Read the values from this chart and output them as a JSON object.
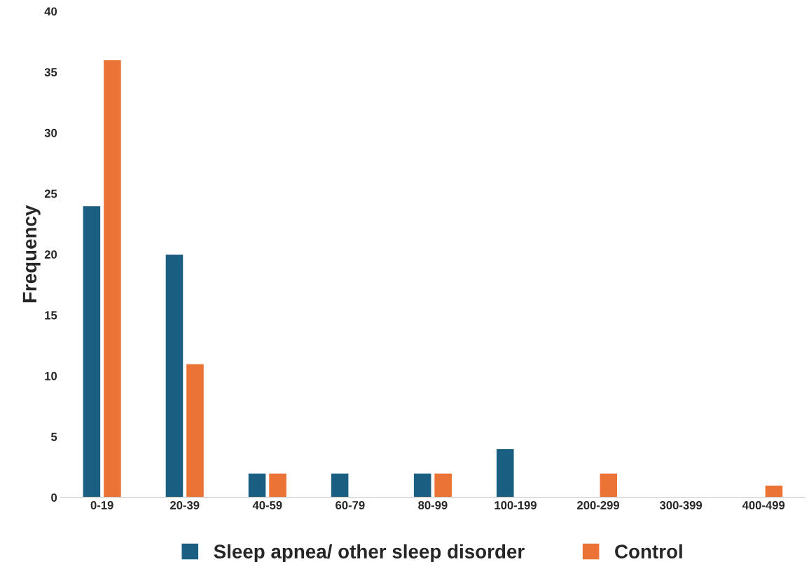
{
  "chart_data": {
    "type": "bar",
    "ylabel": "Frequency",
    "categories": [
      "0-19",
      "20-39",
      "40-59",
      "60-79",
      "80-99",
      "100-199",
      "200-299",
      "300-399",
      "400-499"
    ],
    "series": [
      {
        "name": "Sleep apnea/ other sleep disorder",
        "color": "#1a5f82",
        "values": [
          24,
          20,
          2,
          2,
          2,
          4,
          null,
          null,
          null
        ]
      },
      {
        "name": "Control",
        "color": "#eb7336",
        "values": [
          36,
          11,
          2,
          null,
          2,
          null,
          2,
          null,
          1
        ]
      }
    ],
    "ylim": [
      0,
      40
    ],
    "yticks": [
      0,
      5,
      10,
      15,
      20,
      25,
      30,
      35,
      40
    ],
    "grid": false,
    "legend": "bottom"
  }
}
